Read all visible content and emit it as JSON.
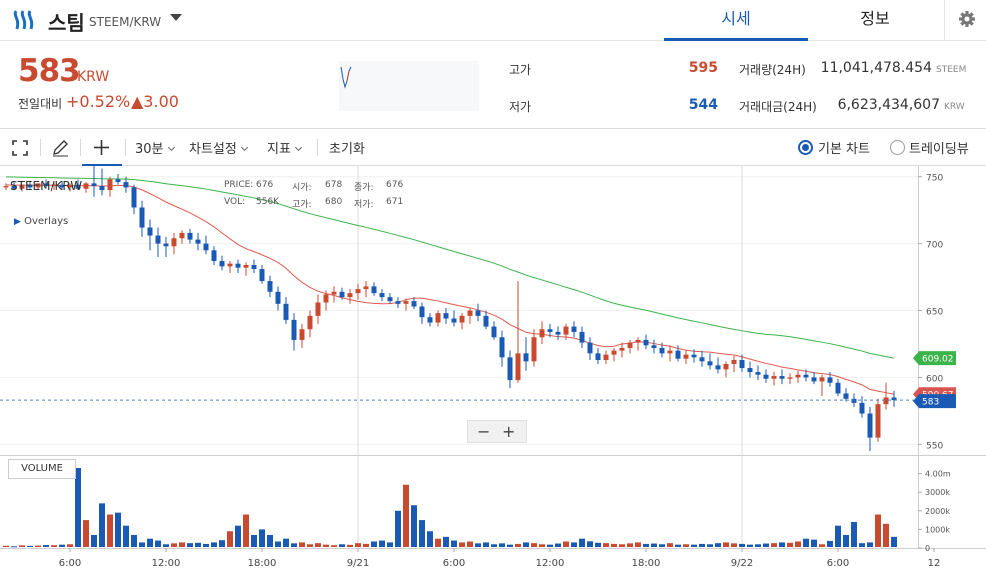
{
  "header": {
    "coin_name": "스팀",
    "coin_pair": "STEEM/KRW",
    "tabs": [
      {
        "label": "시세",
        "active": true
      },
      {
        "label": "정보",
        "active": false
      }
    ],
    "settings_icon": "gear-icon"
  },
  "summary": {
    "price": "583",
    "unit": "KRW",
    "change_label": "전일대비",
    "change_rate": "+0.52%",
    "change_value": "▲3.00",
    "high_label": "고가",
    "high_value": "595",
    "low_label": "저가",
    "low_value": "544",
    "volume_label": "거래량(24H)",
    "volume_value": "11,041,478.454",
    "volume_unit": "STEEM",
    "amount_label": "거래대금(24H)",
    "amount_value": "6,623,434,607",
    "amount_unit": "KRW",
    "up_color": "#c84a31",
    "down_color": "#1a5ab4"
  },
  "toolbar": {
    "fullscreen_icon": "fullscreen-icon",
    "draw_icon": "pencil-icon",
    "crosshair_icon": "crosshair-icon",
    "interval": "30분",
    "chart_settings": "차트설정",
    "indicators": "지표",
    "reset": "초기화",
    "basic_chart": "기본 차트",
    "tradingview": "트레이딩뷰",
    "selected_view": "기본 차트"
  },
  "chart_data": {
    "type": "candlestick",
    "symbol": "STEEM/KRW",
    "ohlc_info": {
      "price_label": "PRICE:",
      "price": "676",
      "open_label": "시가:",
      "open": "678",
      "close_label": "종가:",
      "close": "676",
      "vol_label": "VOL:",
      "vol": "556K",
      "high_label": "고가:",
      "high": "680",
      "low_label": "저가:",
      "low": "671"
    },
    "overlays_label": "Overlays",
    "volume_label": "VOLUME",
    "y_ticks": [
      "750",
      "700",
      "650",
      "600",
      "550"
    ],
    "y_range": [
      542,
      758
    ],
    "vol_ticks": [
      "4.00m",
      "3000k",
      "2000k",
      "1000k",
      "0"
    ],
    "vol_range": [
      0,
      4300
    ],
    "x_ticks": [
      "6:00",
      "12:00",
      "18:00",
      "9/21",
      "6:00",
      "12:00",
      "18:00",
      "9/22",
      "6:00",
      "12"
    ],
    "x_tick_index": [
      8,
      20,
      32,
      44,
      56,
      68,
      80,
      92,
      104,
      116
    ],
    "current_price": 583,
    "current_price_label": "583",
    "ma_labels": [
      {
        "value": "609.02",
        "color": "#3cb44b"
      },
      {
        "value": "590.67",
        "color": "#d9534f"
      }
    ],
    "ma_long_color": "#3cb44b",
    "ma_short_color": "#e05a50",
    "up_color": "#c84a31",
    "down_color": "#1a5ab4",
    "candles": [
      [
        742,
        745,
        740,
        743
      ],
      [
        743,
        746,
        740,
        741
      ],
      [
        741,
        744,
        739,
        744
      ],
      [
        744,
        747,
        741,
        742
      ],
      [
        742,
        745,
        740,
        745
      ],
      [
        745,
        748,
        741,
        743
      ],
      [
        743,
        746,
        740,
        744
      ],
      [
        744,
        747,
        740,
        742
      ],
      [
        742,
        745,
        739,
        744
      ],
      [
        744,
        748,
        740,
        741
      ],
      [
        741,
        746,
        738,
        745
      ],
      [
        745,
        760,
        735,
        743
      ],
      [
        743,
        756,
        736,
        740
      ],
      [
        740,
        750,
        735,
        748
      ],
      [
        748,
        752,
        744,
        746
      ],
      [
        746,
        750,
        738,
        742
      ],
      [
        742,
        744,
        722,
        727
      ],
      [
        727,
        732,
        705,
        712
      ],
      [
        712,
        718,
        695,
        706
      ],
      [
        706,
        712,
        690,
        700
      ],
      [
        700,
        705,
        690,
        698
      ],
      [
        698,
        708,
        692,
        704
      ],
      [
        704,
        710,
        700,
        708
      ],
      [
        708,
        711,
        700,
        703
      ],
      [
        703,
        708,
        695,
        700
      ],
      [
        700,
        706,
        692,
        695
      ],
      [
        695,
        698,
        684,
        687
      ],
      [
        687,
        691,
        680,
        683
      ],
      [
        683,
        687,
        678,
        685
      ],
      [
        685,
        688,
        678,
        682
      ],
      [
        682,
        686,
        676,
        684
      ],
      [
        684,
        688,
        678,
        681
      ],
      [
        681,
        684,
        670,
        672
      ],
      [
        672,
        676,
        660,
        664
      ],
      [
        664,
        668,
        650,
        655
      ],
      [
        655,
        660,
        640,
        643
      ],
      [
        643,
        648,
        620,
        628
      ],
      [
        628,
        640,
        622,
        636
      ],
      [
        636,
        650,
        630,
        646
      ],
      [
        646,
        662,
        640,
        656
      ],
      [
        656,
        665,
        650,
        662
      ],
      [
        662,
        668,
        656,
        664
      ],
      [
        664,
        667,
        658,
        660
      ],
      [
        660,
        666,
        655,
        663
      ],
      [
        663,
        670,
        658,
        666
      ],
      [
        666,
        672,
        660,
        668
      ],
      [
        668,
        671,
        661,
        663
      ],
      [
        663,
        666,
        657,
        660
      ],
      [
        660,
        663,
        655,
        657
      ],
      [
        657,
        660,
        652,
        655
      ],
      [
        655,
        659,
        650,
        657
      ],
      [
        657,
        660,
        651,
        653
      ],
      [
        653,
        656,
        640,
        645
      ],
      [
        645,
        648,
        638,
        641
      ],
      [
        641,
        650,
        638,
        648
      ],
      [
        648,
        652,
        640,
        644
      ],
      [
        644,
        650,
        638,
        641
      ],
      [
        641,
        648,
        636,
        646
      ],
      [
        646,
        652,
        640,
        650
      ],
      [
        650,
        655,
        642,
        646
      ],
      [
        646,
        650,
        636,
        638
      ],
      [
        638,
        642,
        628,
        630
      ],
      [
        630,
        635,
        608,
        615
      ],
      [
        615,
        620,
        592,
        598
      ],
      [
        598,
        672,
        596,
        618
      ],
      [
        618,
        630,
        605,
        612
      ],
      [
        612,
        636,
        608,
        630
      ],
      [
        630,
        642,
        625,
        636
      ],
      [
        636,
        640,
        630,
        634
      ],
      [
        634,
        638,
        628,
        632
      ],
      [
        632,
        640,
        628,
        638
      ],
      [
        638,
        642,
        630,
        634
      ],
      [
        634,
        638,
        622,
        626
      ],
      [
        626,
        630,
        613,
        618
      ],
      [
        618,
        622,
        610,
        613
      ],
      [
        613,
        620,
        610,
        617
      ],
      [
        617,
        622,
        612,
        620
      ],
      [
        620,
        626,
        615,
        622
      ],
      [
        622,
        628,
        618,
        626
      ],
      [
        626,
        630,
        620,
        628
      ],
      [
        628,
        632,
        621,
        624
      ],
      [
        624,
        628,
        618,
        622
      ],
      [
        622,
        626,
        615,
        618
      ],
      [
        618,
        624,
        612,
        620
      ],
      [
        620,
        624,
        612,
        614
      ],
      [
        614,
        620,
        610,
        617
      ],
      [
        617,
        621,
        611,
        615
      ],
      [
        615,
        620,
        608,
        612
      ],
      [
        612,
        618,
        606,
        609
      ],
      [
        609,
        615,
        603,
        606
      ],
      [
        606,
        612,
        600,
        610
      ],
      [
        610,
        616,
        604,
        613
      ],
      [
        613,
        617,
        604,
        607
      ],
      [
        607,
        612,
        600,
        604
      ],
      [
        604,
        609,
        598,
        602
      ],
      [
        602,
        606,
        596,
        599
      ],
      [
        599,
        604,
        594,
        601
      ],
      [
        601,
        606,
        595,
        599
      ],
      [
        599,
        603,
        595,
        600
      ],
      [
        600,
        605,
        596,
        602
      ],
      [
        602,
        606,
        597,
        600
      ],
      [
        600,
        604,
        595,
        597
      ],
      [
        597,
        602,
        586,
        600
      ],
      [
        600,
        604,
        593,
        596
      ],
      [
        596,
        599,
        586,
        588
      ],
      [
        588,
        592,
        582,
        584
      ],
      [
        584,
        588,
        578,
        581
      ],
      [
        581,
        586,
        570,
        573
      ],
      [
        573,
        578,
        545,
        555
      ],
      [
        555,
        584,
        552,
        580
      ],
      [
        580,
        596,
        576,
        585
      ],
      [
        585,
        590,
        578,
        583
      ]
    ],
    "volumes": [
      120,
      90,
      140,
      110,
      130,
      160,
      150,
      180,
      200,
      4300,
      1500,
      700,
      2400,
      1800,
      1900,
      1200,
      700,
      300,
      500,
      400,
      200,
      250,
      300,
      260,
      280,
      220,
      300,
      420,
      900,
      1200,
      1800,
      700,
      1000,
      700,
      350,
      500,
      250,
      300,
      200,
      260,
      180,
      150,
      200,
      170,
      260,
      220,
      350,
      400,
      300,
      2000,
      3400,
      2300,
      1500,
      900,
      500,
      600,
      400,
      300,
      350,
      250,
      300,
      200,
      250,
      180,
      220,
      300,
      260,
      200,
      180,
      240,
      350,
      300,
      500,
      360,
      280,
      260,
      220,
      200,
      250,
      300,
      220,
      240,
      200,
      260,
      180,
      200,
      180,
      220,
      200,
      260,
      300,
      250,
      220,
      180,
      200,
      240,
      260,
      300,
      280,
      350,
      500,
      450,
      200,
      380,
      1200,
      700,
      1400,
      260,
      300,
      1800,
      1300,
      600
    ]
  }
}
